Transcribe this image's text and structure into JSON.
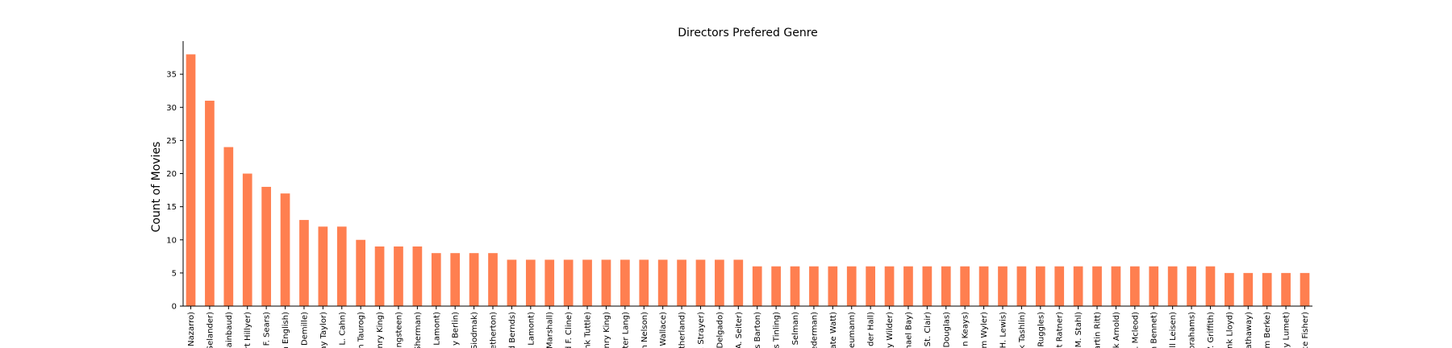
{
  "chart_data": {
    "type": "bar",
    "title": "Directors Prefered Genre",
    "xlabel": "",
    "ylabel": "Count of Movies",
    "ylim": [
      0,
      40
    ],
    "yticks": [
      0,
      5,
      10,
      15,
      20,
      25,
      30,
      35
    ],
    "grid": false,
    "bar_color": "#FF7F50",
    "categories": [
      "Nazarro)",
      "Selander)",
      "ainbaud)",
      "rt Hillyer)",
      "F. Sears)",
      "n English)",
      "Demille)",
      "ay Taylor)",
      "L. Cahn)",
      "n Taurog)",
      "nry King)",
      "ingsteen)",
      "Sherman)",
      "Lamont)",
      "y Berlin)",
      "Siodmak)",
      "etherton)",
      "d Bernds)",
      "Lamont)",
      "Marshall)",
      "d F. Cline)",
      "nk Tuttle)",
      "nry King)",
      "ter Lang)",
      "n Nelson)",
      "Wallace)",
      "therland)",
      ". Strayer)",
      "Delgado)",
      "A. Seiter)",
      "s Barton)",
      "s Tinling)",
      "Selman)",
      "ederman)",
      "ate Watt)",
      "eumann)",
      "der Hall)",
      "y Wilder)",
      "hael Bay)",
      "St. Clair)",
      "Douglas)",
      "n Keays)",
      "m Wyler)",
      "H. Lewis)",
      "k Tashlin)",
      "Ruggles)",
      "t Ratner)",
      "M. Stahl)",
      "artin Ritt)",
      "k Arnold)",
      ". Mcleod)",
      "n Bennet)",
      "ll Leisen)",
      "brahams)",
      "V. Griffith)",
      "nk Lloyd)",
      "athaway)",
      "m Berke)",
      "y Lumet)",
      "ce Fisher)"
    ],
    "values": [
      38,
      31,
      24,
      20,
      18,
      17,
      13,
      12,
      12,
      10,
      9,
      9,
      9,
      8,
      8,
      8,
      8,
      7,
      7,
      7,
      7,
      7,
      7,
      7,
      7,
      7,
      7,
      7,
      7,
      7,
      6,
      6,
      6,
      6,
      6,
      6,
      6,
      6,
      6,
      6,
      6,
      6,
      6,
      6,
      6,
      6,
      6,
      6,
      6,
      6,
      6,
      6,
      6,
      6,
      6,
      5,
      5,
      5,
      5,
      5
    ]
  }
}
